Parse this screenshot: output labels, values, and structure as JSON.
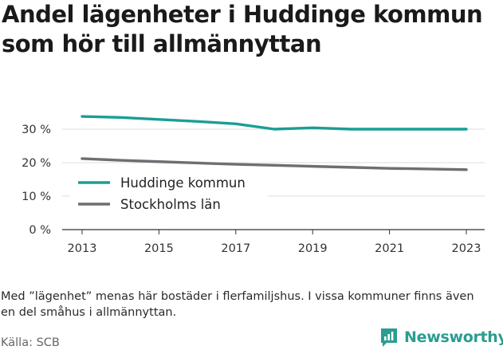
{
  "title": "Andel lägenheter i Huddinge kommun som hör till allmännyttan",
  "note": "Med ”lägenhet” menas här bostäder i flerfamiljshus. I vissa kommuner finns även en del småhus i allmännyttan.",
  "source": "Källa: SCB",
  "brand": {
    "name": "Newsworthy",
    "icon": "bar-chart-logo-icon",
    "color": "#2a9d8f"
  },
  "chart_data": {
    "type": "line",
    "x": [
      2013,
      2014,
      2015,
      2016,
      2017,
      2018,
      2019,
      2020,
      2021,
      2022,
      2023
    ],
    "series": [
      {
        "name": "Huddinge kommun",
        "color": "#1a9e96",
        "values": [
          33.8,
          33.5,
          32.9,
          32.3,
          31.6,
          30.0,
          30.4,
          30.0,
          30.0,
          30.0,
          30.0
        ]
      },
      {
        "name": "Stockholms län",
        "color": "#6e6e73",
        "values": [
          21.2,
          20.7,
          20.3,
          19.9,
          19.5,
          19.2,
          18.9,
          18.6,
          18.3,
          18.1,
          17.9
        ]
      }
    ],
    "xticks": [
      "2013",
      "2015",
      "2017",
      "2019",
      "2021",
      "2023"
    ],
    "yticks": [
      "0 %",
      "10 %",
      "20 %",
      "30 %"
    ],
    "ylim": [
      0,
      35
    ],
    "grid": "horizontal",
    "legend_position": "lower-left"
  }
}
